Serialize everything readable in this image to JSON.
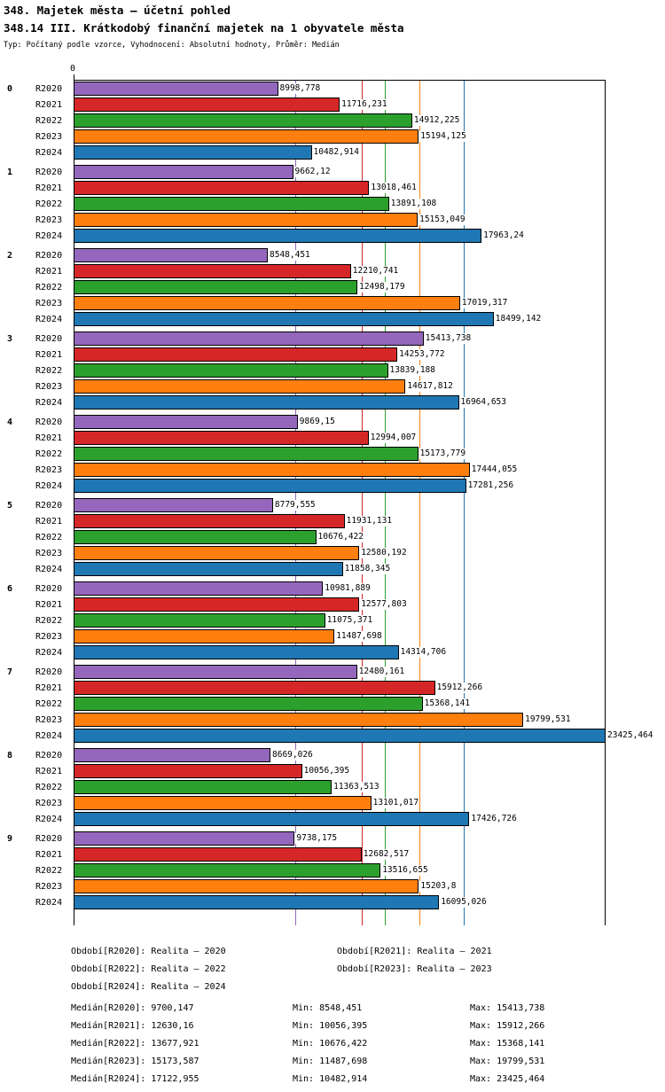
{
  "header": {
    "title": "348. Majetek města – účetní pohled",
    "subtitle": "348.14 III. Krátkodobý finanční majetek na 1 obyvatele města",
    "meta": "Typ: Počítaný podle vzorce, Vyhodnocení: Absolutní hodnoty, Průměr: Medián"
  },
  "chart_data": {
    "type": "bar",
    "orientation": "horizontal",
    "title": "348.14 III. Krátkodobý finanční majetek na 1 obyvatele města",
    "axis_zero_label": "0",
    "xlim": [
      0,
      23425.464
    ],
    "grid": "median line per series, vertical, colored as series",
    "categories": [
      "0",
      "1",
      "2",
      "3",
      "4",
      "5",
      "6",
      "7",
      "8",
      "9"
    ],
    "series": [
      {
        "name": "R2020",
        "color": "#9467bd",
        "values": [
          8998.778,
          9662.12,
          8548.451,
          15413.738,
          9869.15,
          8779.555,
          10981.889,
          12480.161,
          8669.026,
          9738.175
        ],
        "values_display": [
          "8998,778",
          "9662,12",
          "8548,451",
          "15413,738",
          "9869,15",
          "8779,555",
          "10981,889",
          "12480,161",
          "8669,026",
          "9738,175"
        ],
        "median": 9700.147,
        "median_display": "9700,147"
      },
      {
        "name": "R2021",
        "color": "#d62728",
        "values": [
          11716.231,
          13018.461,
          12210.741,
          14253.772,
          12994.007,
          11931.131,
          12577.803,
          15912.266,
          10056.395,
          12682.517
        ],
        "values_display": [
          "11716,231",
          "13018,461",
          "12210,741",
          "14253,772",
          "12994,007",
          "11931,131",
          "12577,803",
          "15912,266",
          "10056,395",
          "12682,517"
        ],
        "median": 12630.16,
        "median_display": "12630,16"
      },
      {
        "name": "R2022",
        "color": "#2ca02c",
        "values": [
          14912.225,
          13891.108,
          12498.179,
          13839.188,
          15173.779,
          10676.422,
          11075.371,
          15368.141,
          11363.513,
          13516.655
        ],
        "values_display": [
          "14912,225",
          "13891,108",
          "12498,179",
          "13839,188",
          "15173,779",
          "10676,422",
          "11075,371",
          "15368,141",
          "11363,513",
          "13516,655"
        ],
        "median": 13677.921,
        "median_display": "13677,921"
      },
      {
        "name": "R2023",
        "color": "#ff7f0e",
        "values": [
          15194.125,
          15153.049,
          17019.317,
          14617.812,
          17444.055,
          12580.192,
          11487.698,
          19799.531,
          13101.017,
          15203.8
        ],
        "values_display": [
          "15194,125",
          "15153,049",
          "17019,317",
          "14617,812",
          "17444,055",
          "12580,192",
          "11487,698",
          "19799,531",
          "13101,017",
          "15203,8"
        ],
        "median": 15173.587,
        "median_display": "15173,587"
      },
      {
        "name": "R2024",
        "color": "#1f77b4",
        "values": [
          10482.914,
          17963.24,
          18499.142,
          16964.653,
          17281.256,
          11858.345,
          14314.706,
          23425.464,
          17426.726,
          16095.026
        ],
        "values_display": [
          "10482,914",
          "17963,24",
          "18499,142",
          "16964,653",
          "17281,256",
          "11858,345",
          "14314,706",
          "23425,464",
          "17426,726",
          "16095,026"
        ],
        "median": 17122.955,
        "median_display": "17122,955"
      }
    ]
  },
  "footer": {
    "labels": {
      "min": "Min:",
      "max": "Max:"
    },
    "periods": [
      {
        "label": "Období[R2020]:",
        "value": "Realita – 2020"
      },
      {
        "label": "Období[R2021]:",
        "value": "Realita – 2021"
      },
      {
        "label": "Období[R2022]:",
        "value": "Realita – 2022"
      },
      {
        "label": "Období[R2023]:",
        "value": "Realita – 2023"
      },
      {
        "label": "Období[R2024]:",
        "value": "Realita – 2024"
      }
    ],
    "stats": [
      {
        "label": "Medián[R2020]:",
        "median": "9700,147",
        "min": "8548,451",
        "max": "15413,738"
      },
      {
        "label": "Medián[R2021]:",
        "median": "12630,16",
        "min": "10056,395",
        "max": "15912,266"
      },
      {
        "label": "Medián[R2022]:",
        "median": "13677,921",
        "min": "10676,422",
        "max": "15368,141"
      },
      {
        "label": "Medián[R2023]:",
        "median": "15173,587",
        "min": "11487,698",
        "max": "19799,531"
      },
      {
        "label": "Medián[R2024]:",
        "median": "17122,955",
        "min": "10482,914",
        "max": "23425,464"
      }
    ]
  }
}
